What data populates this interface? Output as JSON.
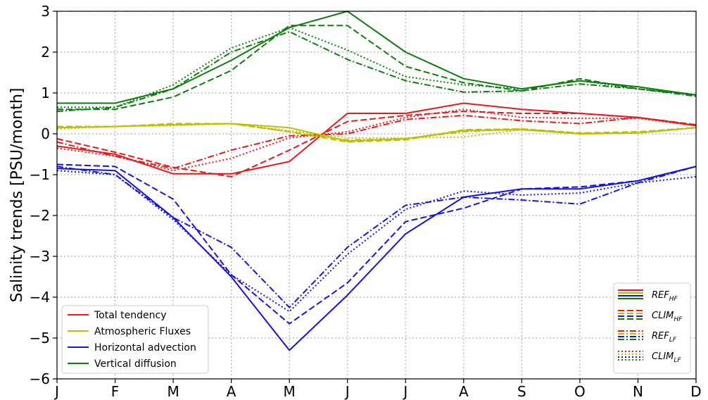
{
  "chart_data": {
    "type": "line",
    "ylabel": "Salinity trends [PSU/month]",
    "xlabel": "",
    "ylim": [
      -6,
      3
    ],
    "yticks": [
      -6,
      -5,
      -4,
      -3,
      -2,
      -1,
      0,
      1,
      2,
      3
    ],
    "ytick_labels": [
      "−6",
      "−5",
      "−4",
      "−3",
      "−2",
      "−1",
      "0",
      "1",
      "2",
      "3"
    ],
    "categories": [
      "J",
      "F",
      "M",
      "A",
      "M",
      "J",
      "J",
      "A",
      "S",
      "O",
      "N",
      "D"
    ],
    "grid": true,
    "colors": {
      "total": "#e8191a",
      "atm": "#bfbf00",
      "horiz": "#1414e0",
      "vert": "#0b7d0b"
    },
    "legend_variables": {
      "placement": "lower-left",
      "entries": [
        {
          "label": "Total tendency",
          "var": "total"
        },
        {
          "label": "Atmospheric Fluxes",
          "var": "atm"
        },
        {
          "label": "Horizontal advection",
          "var": "horiz"
        },
        {
          "label": "Vertical diffusion",
          "var": "vert"
        }
      ]
    },
    "legend_experiments": {
      "placement": "lower-right",
      "entries": [
        {
          "base": "REF",
          "sub": "HF",
          "style": "solid"
        },
        {
          "base": "CLIM",
          "sub": "HF",
          "style": "dashed"
        },
        {
          "base": "REF",
          "sub": "LF",
          "style": "dashdot"
        },
        {
          "base": "CLIM",
          "sub": "LF",
          "style": "dotted"
        }
      ]
    },
    "series": [
      {
        "var": "total",
        "style": "solid",
        "values": [
          -0.3,
          -0.5,
          -0.98,
          -0.98,
          -0.68,
          0.5,
          0.5,
          0.75,
          0.6,
          0.5,
          0.4,
          0.2
        ]
      },
      {
        "var": "total",
        "style": "dashed",
        "values": [
          -0.12,
          -0.45,
          -0.82,
          -1.05,
          -0.4,
          0.3,
          0.45,
          0.55,
          0.5,
          0.5,
          0.4,
          0.22
        ]
      },
      {
        "var": "total",
        "style": "dashdot",
        "values": [
          -0.2,
          -0.55,
          -0.85,
          -0.4,
          -0.05,
          0.0,
          0.35,
          0.45,
          0.32,
          0.25,
          0.4,
          0.22
        ]
      },
      {
        "var": "total",
        "style": "dotted",
        "values": [
          -0.35,
          -0.55,
          -0.9,
          -0.6,
          -0.1,
          0.05,
          0.4,
          0.6,
          0.4,
          0.38,
          0.38,
          0.2
        ]
      },
      {
        "var": "atm",
        "style": "solid",
        "values": [
          0.15,
          0.18,
          0.22,
          0.25,
          0.15,
          -0.18,
          -0.12,
          0.08,
          0.1,
          0.0,
          0.02,
          0.15
        ]
      },
      {
        "var": "atm",
        "style": "dashed",
        "values": [
          0.18,
          0.18,
          0.25,
          0.25,
          0.05,
          -0.2,
          -0.15,
          0.1,
          0.12,
          0.02,
          0.05,
          0.15
        ]
      },
      {
        "var": "atm",
        "style": "dashdot",
        "values": [
          0.15,
          0.18,
          0.22,
          0.25,
          0.05,
          -0.15,
          -0.12,
          0.05,
          0.12,
          0.0,
          0.02,
          0.15
        ]
      },
      {
        "var": "atm",
        "style": "dotted",
        "values": [
          0.12,
          0.18,
          0.2,
          0.25,
          0.08,
          -0.1,
          -0.1,
          -0.08,
          0.1,
          0.02,
          0.02,
          0.15
        ]
      },
      {
        "var": "horiz",
        "style": "solid",
        "values": [
          -0.85,
          -0.9,
          -2.05,
          -3.5,
          -5.3,
          -3.95,
          -2.45,
          -1.55,
          -1.35,
          -1.35,
          -1.15,
          -0.8
        ]
      },
      {
        "var": "horiz",
        "style": "dashed",
        "values": [
          -0.75,
          -0.8,
          -1.6,
          -3.45,
          -4.65,
          -3.65,
          -2.15,
          -1.82,
          -1.35,
          -1.3,
          -1.15,
          -0.8
        ]
      },
      {
        "var": "horiz",
        "style": "dashdot",
        "values": [
          -0.8,
          -1.0,
          -2.05,
          -2.78,
          -4.25,
          -2.78,
          -1.75,
          -1.55,
          -1.62,
          -1.72,
          -1.2,
          -0.8
        ]
      },
      {
        "var": "horiz",
        "style": "dotted",
        "values": [
          -0.9,
          -1.0,
          -2.1,
          -3.45,
          -4.35,
          -2.95,
          -1.85,
          -1.4,
          -1.5,
          -1.45,
          -1.2,
          -1.05
        ]
      },
      {
        "var": "vert",
        "style": "solid",
        "values": [
          0.75,
          0.75,
          1.1,
          1.8,
          2.6,
          3.0,
          2.0,
          1.35,
          1.1,
          1.3,
          1.15,
          0.95
        ]
      },
      {
        "var": "vert",
        "style": "dashed",
        "values": [
          0.6,
          0.6,
          0.9,
          1.55,
          2.65,
          2.65,
          1.65,
          1.25,
          1.05,
          1.35,
          1.1,
          0.95
        ]
      },
      {
        "var": "vert",
        "style": "dashdot",
        "values": [
          0.55,
          0.65,
          1.1,
          2.0,
          2.5,
          1.82,
          1.3,
          1.02,
          1.05,
          1.22,
          1.1,
          0.92
        ]
      },
      {
        "var": "vert",
        "style": "dotted",
        "values": [
          0.65,
          0.65,
          1.2,
          2.1,
          2.6,
          2.05,
          1.4,
          1.2,
          1.1,
          1.3,
          1.1,
          0.95
        ]
      }
    ]
  }
}
